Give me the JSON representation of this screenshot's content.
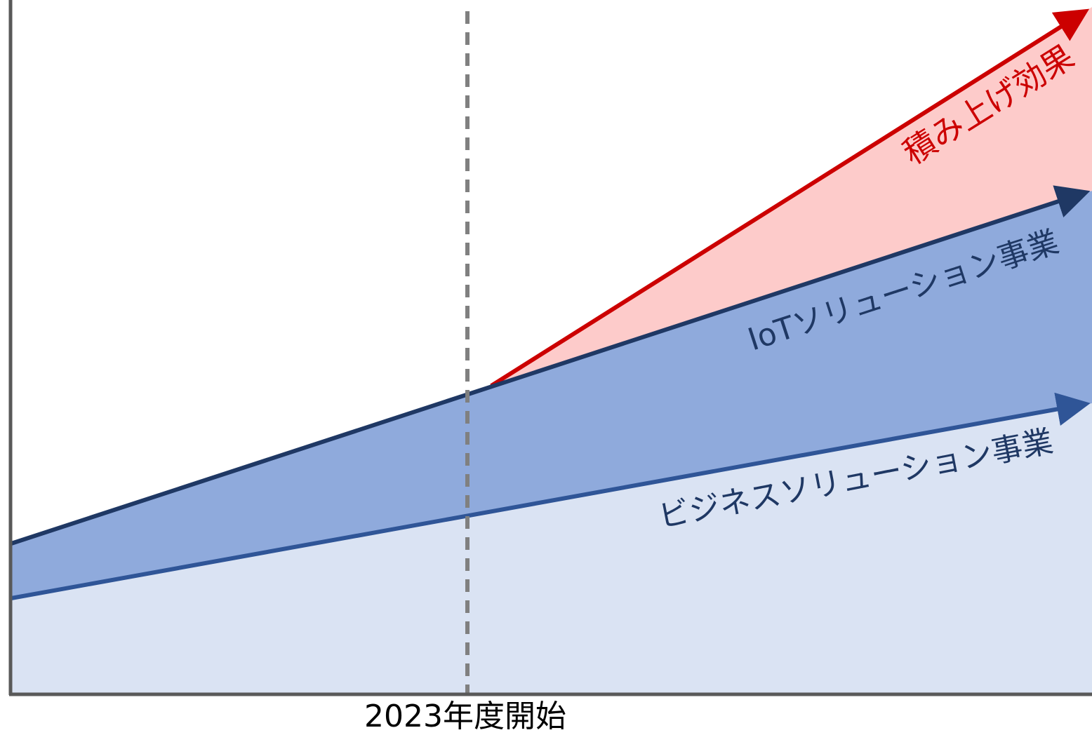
{
  "diagram": {
    "labels": {
      "stacking_effect": "積み上げ効果",
      "iot_solutions": "IoTソリューション事業",
      "business_solutions": "ビジネスソリューション事業",
      "start_marker": "2023年度開始"
    },
    "colors": {
      "stacking_line": "#cc0000",
      "stacking_fill": "#fdcbca",
      "iot_line": "#1f3864",
      "iot_fill": "#8faadc",
      "business_line": "#2f5597",
      "business_fill": "#dae3f3",
      "axis": "#595959",
      "marker": "#808080",
      "iot_label": "#1f3864",
      "business_label": "#1f3864"
    }
  }
}
